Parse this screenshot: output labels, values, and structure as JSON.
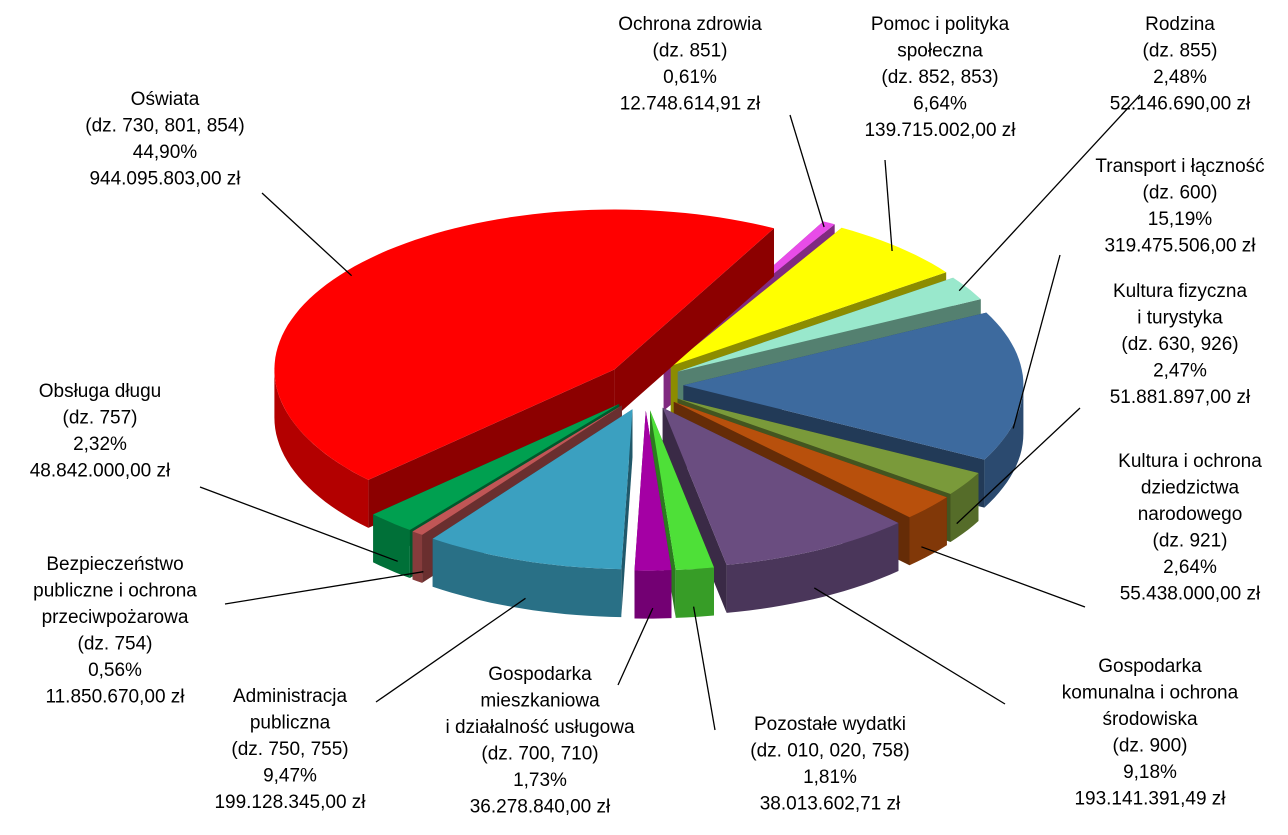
{
  "chart_data": {
    "type": "pie",
    "categories": [
      "Ochrona zdrowia",
      "Pomoc i polityka\nspołeczna",
      "Rodzina",
      "Transport i łączność",
      "Kultura fizyczna\ni turystyka",
      "Kultura i ochrona\ndziedzictwa\nnarodowego",
      "Gospodarka\nkomunalna i ochrona\nśrodowiska",
      "Pozostałe wydatki",
      "Gospodarka\nmieszkaniowa\ni działalność usługowa",
      "Administracja\npubliczna",
      "Bezpieczeństwo\npubliczne i ochrona\nprzeciwpożarowa",
      "Obsługa długu",
      "Oświata"
    ],
    "codes": [
      "(dz. 851)",
      "(dz. 852, 853)",
      "(dz. 855)",
      "(dz. 600)",
      "(dz. 630, 926)",
      "(dz. 921)",
      "(dz. 900)",
      "(dz. 010, 020, 758)",
      "(dz. 700, 710)",
      "(dz. 750, 755)",
      "(dz. 754)",
      "(dz. 757)",
      "(dz. 730, 801, 854)"
    ],
    "values": [
      0.61,
      6.64,
      2.48,
      15.19,
      2.47,
      2.64,
      9.18,
      1.81,
      1.73,
      9.47,
      0.56,
      2.32,
      44.9
    ],
    "value_labels": [
      "0,61%",
      "6,64%",
      "2,48%",
      "15,19%",
      "2,47%",
      "2,64%",
      "9,18%",
      "1,81%",
      "1,73%",
      "9,47%",
      "0,56%",
      "2,32%",
      "44,90%"
    ],
    "amounts": [
      12748614.91,
      139715002.0,
      52146690.0,
      319475506.0,
      51881897.0,
      55438000.0,
      193141391.49,
      38013602.71,
      36278840.0,
      199128345.0,
      11850670.0,
      48842000.0,
      944095803.0
    ],
    "amount_labels": [
      "12.748.614,91 zł",
      "139.715.002,00 zł",
      "52.146.690,00 zł",
      "319.475.506,00 zł",
      "51.881.897,00 zł",
      "55.438.000,00 zł",
      "193.141.391,49 zł",
      "38.013.602,71 zł",
      "36.278.840,00 zł",
      "199.128.345,00 zł",
      "11.850.670,00 zł",
      "48.842.000,00 zł",
      "944.095.803,00 zł"
    ],
    "colors": [
      "#e84ce8",
      "#ffff00",
      "#99e8cc",
      "#3d6a9e",
      "#7a9a3a",
      "#b8500c",
      "#6a4d80",
      "#4ee038",
      "#a400a4",
      "#3ba0c0",
      "#c05656",
      "#00a050",
      "#ff0000"
    ]
  }
}
